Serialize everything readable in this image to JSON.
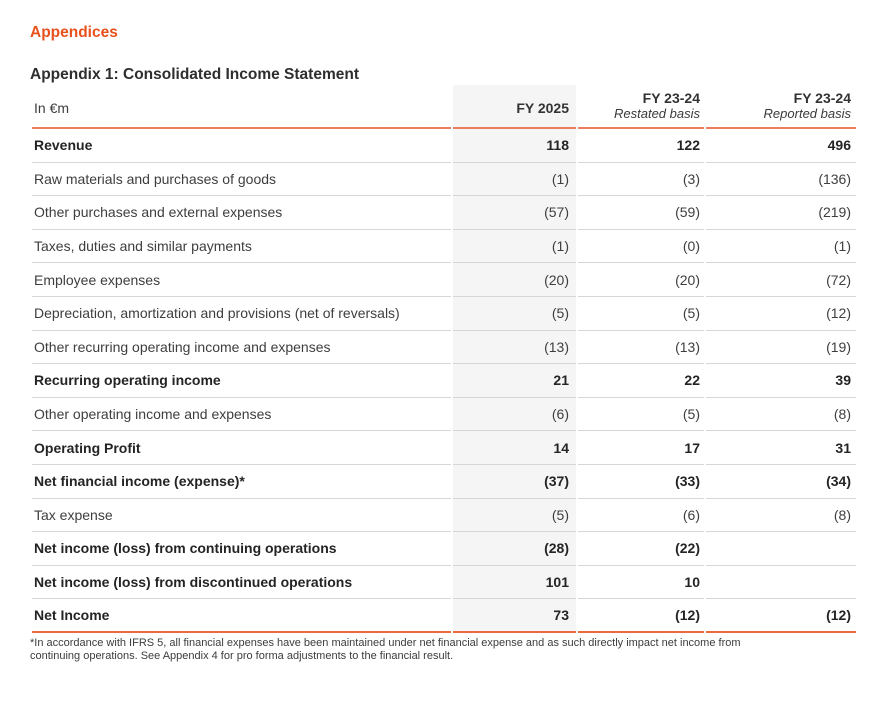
{
  "page": {
    "section_title": "Appendices",
    "table_title": "Appendix 1: Consolidated Income Statement"
  },
  "table": {
    "unit_label": "In €m",
    "columns": [
      {
        "label": "FY 2025",
        "sublabel": ""
      },
      {
        "label": "FY 23-24",
        "sublabel": "Restated basis"
      },
      {
        "label": "FY 23-24",
        "sublabel": "Reported basis"
      }
    ],
    "rows": [
      {
        "label": "Revenue",
        "bold": true,
        "values": [
          "118",
          "122",
          "496"
        ]
      },
      {
        "label": "Raw materials and purchases of goods",
        "bold": false,
        "values": [
          "(1)",
          "(3)",
          "(136)"
        ]
      },
      {
        "label": "Other purchases and external expenses",
        "bold": false,
        "values": [
          "(57)",
          "(59)",
          "(219)"
        ]
      },
      {
        "label": "Taxes, duties and similar payments",
        "bold": false,
        "values": [
          "(1)",
          "(0)",
          "(1)"
        ]
      },
      {
        "label": "Employee expenses",
        "bold": false,
        "values": [
          "(20)",
          "(20)",
          "(72)"
        ]
      },
      {
        "label": "Depreciation, amortization and provisions (net of reversals)",
        "bold": false,
        "values": [
          "(5)",
          "(5)",
          "(12)"
        ]
      },
      {
        "label": "Other recurring operating income and expenses",
        "bold": false,
        "values": [
          "(13)",
          "(13)",
          "(19)"
        ]
      },
      {
        "label": "Recurring operating income",
        "bold": true,
        "values": [
          "21",
          "22",
          "39"
        ]
      },
      {
        "label": "Other operating income and expenses",
        "bold": false,
        "values": [
          "(6)",
          "(5)",
          "(8)"
        ]
      },
      {
        "label": "Operating Profit",
        "bold": true,
        "values": [
          "14",
          "17",
          "31"
        ]
      },
      {
        "label": "Net financial income (expense)*",
        "bold": true,
        "values": [
          "(37)",
          "(33)",
          "(34)"
        ]
      },
      {
        "label": "Tax expense",
        "bold": false,
        "values": [
          "(5)",
          "(6)",
          "(8)"
        ]
      },
      {
        "label": "Net income (loss) from continuing operations",
        "bold": true,
        "values": [
          "(28)",
          "(22)",
          ""
        ]
      },
      {
        "label": "Net income (loss) from discontinued operations",
        "bold": true,
        "values": [
          "101",
          "10",
          ""
        ]
      },
      {
        "label": "Net Income",
        "bold": true,
        "values": [
          "73",
          "(12)",
          "(12)"
        ]
      }
    ],
    "footnote": "*In accordance with IFRS 5, all financial expenses have been maintained under net financial expense and as such directly impact net income from continuing operations. See Appendix 4 for pro forma adjustments to the financial result."
  },
  "colors": {
    "accent_orange": "#e8511c",
    "header_rule_orange": "#ed7e5c",
    "bottom_rule_orange": "#e96b3f",
    "row_divider_gray": "#d6d6d6",
    "highlight_column_bg": "#f5f5f5"
  }
}
